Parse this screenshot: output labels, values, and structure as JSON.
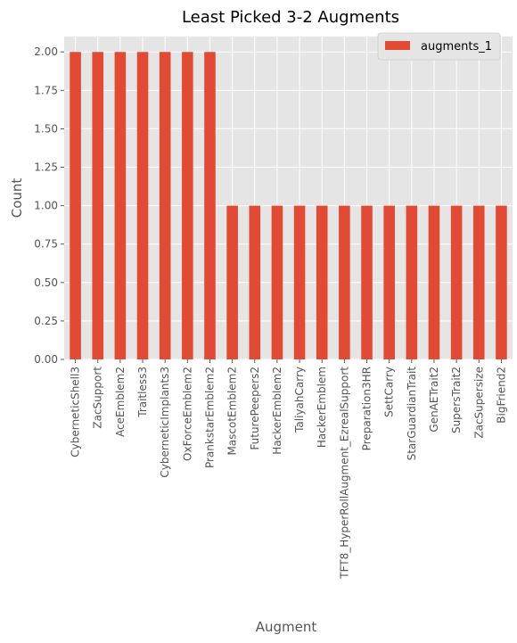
{
  "chart_data": {
    "type": "bar",
    "title": "Least Picked 3-2 Augments",
    "xlabel": "Augment",
    "ylabel": "Count",
    "ylim": [
      0,
      2.1
    ],
    "yticks": [
      "0.00",
      "0.25",
      "0.50",
      "0.75",
      "1.00",
      "1.25",
      "1.50",
      "1.75",
      "2.00"
    ],
    "grid": true,
    "legend_position": "top-right",
    "categories": [
      "CyberneticShell3",
      "ZacSupport",
      "AceEmblem2",
      "Traitless3",
      "CyberneticImplants3",
      "OxForceEmblem2",
      "PrankstarEmblem2",
      "MascotEmblem2",
      "FuturePeepers2",
      "HackerEmblem2",
      "TaliyahCarry",
      "HackerEmblem",
      "TFT8_HyperRollAugment_EzrealSupport",
      "Preparation3HR",
      "SettCarry",
      "StarGuardianTrait",
      "GenAETrait2",
      "SupersTrait2",
      "ZacSupersize",
      "BigFriend2"
    ],
    "series": [
      {
        "name": "augments_1",
        "color": "#E24A33",
        "values": [
          2,
          2,
          2,
          2,
          2,
          2,
          2,
          1,
          1,
          1,
          1,
          1,
          1,
          1,
          1,
          1,
          1,
          1,
          1,
          1
        ]
      }
    ],
    "colors": {
      "plot_background": "#E5E5E5",
      "grid": "#FFFFFF",
      "text": "#555555",
      "title": "#000000"
    }
  }
}
